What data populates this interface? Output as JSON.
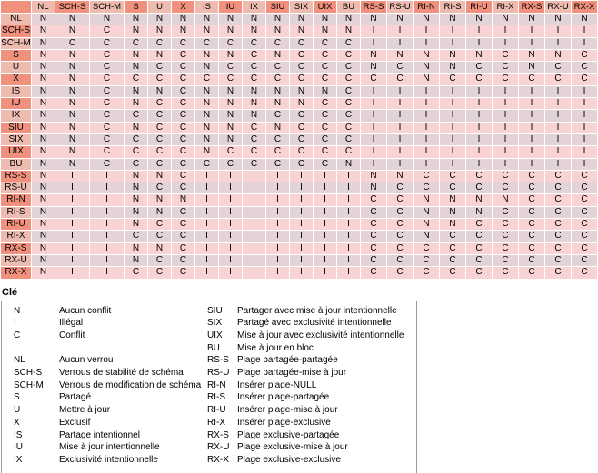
{
  "colors": {
    "header_salmon": "#f0907d",
    "header_muted": "#eebbb1",
    "row_pink": "#f9d3d3",
    "row_mauve": "#e3d2d6",
    "grid_line": "#ffffff",
    "legend_border": "#9b9b9b",
    "text": "#000000"
  },
  "matrix": {
    "corner_label": "",
    "columns": [
      "NL",
      "SCH-S",
      "SCH-M",
      "S",
      "U",
      "X",
      "IS",
      "IU",
      "IX",
      "SIU",
      "SIX",
      "UIX",
      "BU",
      "RS-S",
      "RS-U",
      "RI-N",
      "RI-S",
      "RI-U",
      "RI-X",
      "RX-S",
      "RX-U",
      "RX-X"
    ],
    "rows": [
      {
        "label": "NL",
        "cells": [
          "N",
          "N",
          "N",
          "N",
          "N",
          "N",
          "N",
          "N",
          "N",
          "N",
          "N",
          "N",
          "N",
          "N",
          "N",
          "N",
          "N",
          "N",
          "N",
          "N",
          "N",
          "N"
        ]
      },
      {
        "label": "SCH-S",
        "cells": [
          "N",
          "N",
          "C",
          "N",
          "N",
          "N",
          "N",
          "N",
          "N",
          "N",
          "N",
          "N",
          "N",
          "I",
          "I",
          "I",
          "I",
          "I",
          "I",
          "I",
          "I",
          "I"
        ]
      },
      {
        "label": "SCH-M",
        "cells": [
          "N",
          "C",
          "C",
          "C",
          "C",
          "C",
          "C",
          "C",
          "C",
          "C",
          "C",
          "C",
          "C",
          "I",
          "I",
          "I",
          "I",
          "I",
          "I",
          "I",
          "I",
          "I"
        ]
      },
      {
        "label": "S",
        "cells": [
          "N",
          "N",
          "C",
          "N",
          "N",
          "C",
          "N",
          "N",
          "C",
          "N",
          "C",
          "C",
          "C",
          "N",
          "N",
          "N",
          "N",
          "N",
          "C",
          "N",
          "N",
          "C"
        ]
      },
      {
        "label": "U",
        "cells": [
          "N",
          "N",
          "C",
          "N",
          "C",
          "C",
          "N",
          "C",
          "C",
          "C",
          "C",
          "C",
          "C",
          "N",
          "C",
          "N",
          "N",
          "C",
          "C",
          "N",
          "C",
          "C"
        ]
      },
      {
        "label": "X",
        "cells": [
          "N",
          "N",
          "C",
          "C",
          "C",
          "C",
          "C",
          "C",
          "C",
          "C",
          "C",
          "C",
          "C",
          "C",
          "C",
          "N",
          "C",
          "C",
          "C",
          "C",
          "C",
          "C"
        ]
      },
      {
        "label": "IS",
        "cells": [
          "N",
          "N",
          "C",
          "N",
          "N",
          "C",
          "N",
          "N",
          "N",
          "N",
          "N",
          "N",
          "C",
          "I",
          "I",
          "I",
          "I",
          "I",
          "I",
          "I",
          "I",
          "I"
        ]
      },
      {
        "label": "IU",
        "cells": [
          "N",
          "N",
          "C",
          "N",
          "C",
          "C",
          "N",
          "N",
          "N",
          "N",
          "N",
          "C",
          "C",
          "I",
          "I",
          "I",
          "I",
          "I",
          "I",
          "I",
          "I",
          "I"
        ]
      },
      {
        "label": "IX",
        "cells": [
          "N",
          "N",
          "C",
          "C",
          "C",
          "C",
          "N",
          "N",
          "N",
          "C",
          "C",
          "C",
          "C",
          "I",
          "I",
          "I",
          "I",
          "I",
          "I",
          "I",
          "I",
          "I"
        ]
      },
      {
        "label": "SIU",
        "cells": [
          "N",
          "N",
          "C",
          "N",
          "C",
          "C",
          "N",
          "N",
          "C",
          "N",
          "C",
          "C",
          "C",
          "I",
          "I",
          "I",
          "I",
          "I",
          "I",
          "I",
          "I",
          "I"
        ]
      },
      {
        "label": "SIX",
        "cells": [
          "N",
          "N",
          "C",
          "C",
          "C",
          "C",
          "N",
          "N",
          "C",
          "C",
          "C",
          "C",
          "C",
          "I",
          "I",
          "I",
          "I",
          "I",
          "I",
          "I",
          "I",
          "I"
        ]
      },
      {
        "label": "UIX",
        "cells": [
          "N",
          "N",
          "C",
          "C",
          "C",
          "C",
          "N",
          "C",
          "C",
          "C",
          "C",
          "C",
          "C",
          "I",
          "I",
          "I",
          "I",
          "I",
          "I",
          "I",
          "I",
          "I"
        ]
      },
      {
        "label": "BU",
        "cells": [
          "N",
          "N",
          "C",
          "C",
          "C",
          "C",
          "C",
          "C",
          "C",
          "C",
          "C",
          "C",
          "N",
          "I",
          "I",
          "I",
          "I",
          "I",
          "I",
          "I",
          "I",
          "I"
        ]
      },
      {
        "label": "RS-S",
        "cells": [
          "N",
          "I",
          "I",
          "N",
          "N",
          "C",
          "I",
          "I",
          "I",
          "I",
          "I",
          "I",
          "I",
          "N",
          "N",
          "C",
          "C",
          "C",
          "C",
          "C",
          "C",
          "C"
        ]
      },
      {
        "label": "RS-U",
        "cells": [
          "N",
          "I",
          "I",
          "N",
          "C",
          "C",
          "I",
          "I",
          "I",
          "I",
          "I",
          "I",
          "I",
          "N",
          "C",
          "C",
          "C",
          "C",
          "C",
          "C",
          "C",
          "C"
        ]
      },
      {
        "label": "RI-N",
        "cells": [
          "N",
          "I",
          "I",
          "N",
          "N",
          "N",
          "I",
          "I",
          "I",
          "I",
          "I",
          "I",
          "I",
          "C",
          "C",
          "N",
          "N",
          "N",
          "N",
          "C",
          "C",
          "C"
        ]
      },
      {
        "label": "RI-S",
        "cells": [
          "N",
          "I",
          "I",
          "N",
          "N",
          "C",
          "I",
          "I",
          "I",
          "I",
          "I",
          "I",
          "I",
          "C",
          "C",
          "N",
          "N",
          "N",
          "C",
          "C",
          "C",
          "C"
        ]
      },
      {
        "label": "RI-U",
        "cells": [
          "N",
          "I",
          "I",
          "N",
          "C",
          "C",
          "I",
          "I",
          "I",
          "I",
          "I",
          "I",
          "I",
          "C",
          "C",
          "N",
          "N",
          "C",
          "C",
          "C",
          "C",
          "C"
        ]
      },
      {
        "label": "RI-X",
        "cells": [
          "N",
          "I",
          "I",
          "C",
          "C",
          "C",
          "I",
          "I",
          "I",
          "I",
          "I",
          "I",
          "I",
          "C",
          "C",
          "N",
          "C",
          "C",
          "C",
          "C",
          "C",
          "C"
        ]
      },
      {
        "label": "RX-S",
        "cells": [
          "N",
          "I",
          "I",
          "N",
          "N",
          "C",
          "I",
          "I",
          "I",
          "I",
          "I",
          "I",
          "I",
          "C",
          "C",
          "C",
          "C",
          "C",
          "C",
          "C",
          "C",
          "C"
        ]
      },
      {
        "label": "RX-U",
        "cells": [
          "N",
          "I",
          "I",
          "N",
          "C",
          "C",
          "I",
          "I",
          "I",
          "I",
          "I",
          "I",
          "I",
          "C",
          "C",
          "C",
          "C",
          "C",
          "C",
          "C",
          "C",
          "C"
        ]
      },
      {
        "label": "RX-X",
        "cells": [
          "N",
          "I",
          "I",
          "C",
          "C",
          "C",
          "I",
          "I",
          "I",
          "I",
          "I",
          "I",
          "I",
          "C",
          "C",
          "C",
          "C",
          "C",
          "C",
          "C",
          "C",
          "C"
        ]
      }
    ]
  },
  "legend": {
    "title": "Clé",
    "rows": [
      {
        "l_code": "N",
        "l_desc": "Aucun conflit",
        "r_code": "SIU",
        "r_desc": "Partager avec mise à jour intentionnelle"
      },
      {
        "l_code": "I",
        "l_desc": "Illégal",
        "r_code": "SIX",
        "r_desc": "Partagé avec exclusivité intentionnelle"
      },
      {
        "l_code": "C",
        "l_desc": "Conflit",
        "r_code": "UIX",
        "r_desc": "Mise à jour avec exclusivité intentionnelle"
      },
      {
        "l_code": "",
        "l_desc": "",
        "r_code": "BU",
        "r_desc": "Mise à jour en bloc"
      },
      {
        "l_code": "NL",
        "l_desc": "Aucun verrou",
        "r_code": "RS-S",
        "r_desc": "Plage partagée-partagée"
      },
      {
        "l_code": "SCH-S",
        "l_desc": "Verrous de stabilité de schéma",
        "r_code": "RS-U",
        "r_desc": "Plage partagée-mise à jour"
      },
      {
        "l_code": "SCH-M",
        "l_desc": "Verrous de modification de schéma",
        "r_code": "RI-N",
        "r_desc": "Insérer plage-NULL"
      },
      {
        "l_code": "S",
        "l_desc": "Partagé",
        "r_code": "RI-S",
        "r_desc": "Insérer plage-partagée"
      },
      {
        "l_code": "U",
        "l_desc": "Mettre à jour",
        "r_code": "RI-U",
        "r_desc": "Insérer plage-mise à jour"
      },
      {
        "l_code": "X",
        "l_desc": "Exclusif",
        "r_code": "RI-X",
        "r_desc": "Insérer plage-exclusive"
      },
      {
        "l_code": "IS",
        "l_desc": "Partage intentionnel",
        "r_code": "RX-S",
        "r_desc": "Plage exclusive-partagée"
      },
      {
        "l_code": "IU",
        "l_desc": "Mise à jour intentionnelle",
        "r_code": "RX-U",
        "r_desc": "Plage exclusive-mise à jour"
      },
      {
        "l_code": "IX",
        "l_desc": "Exclusivité intentionnelle",
        "r_code": "RX-X",
        "r_desc": "Plage exclusive-exclusive"
      }
    ]
  }
}
